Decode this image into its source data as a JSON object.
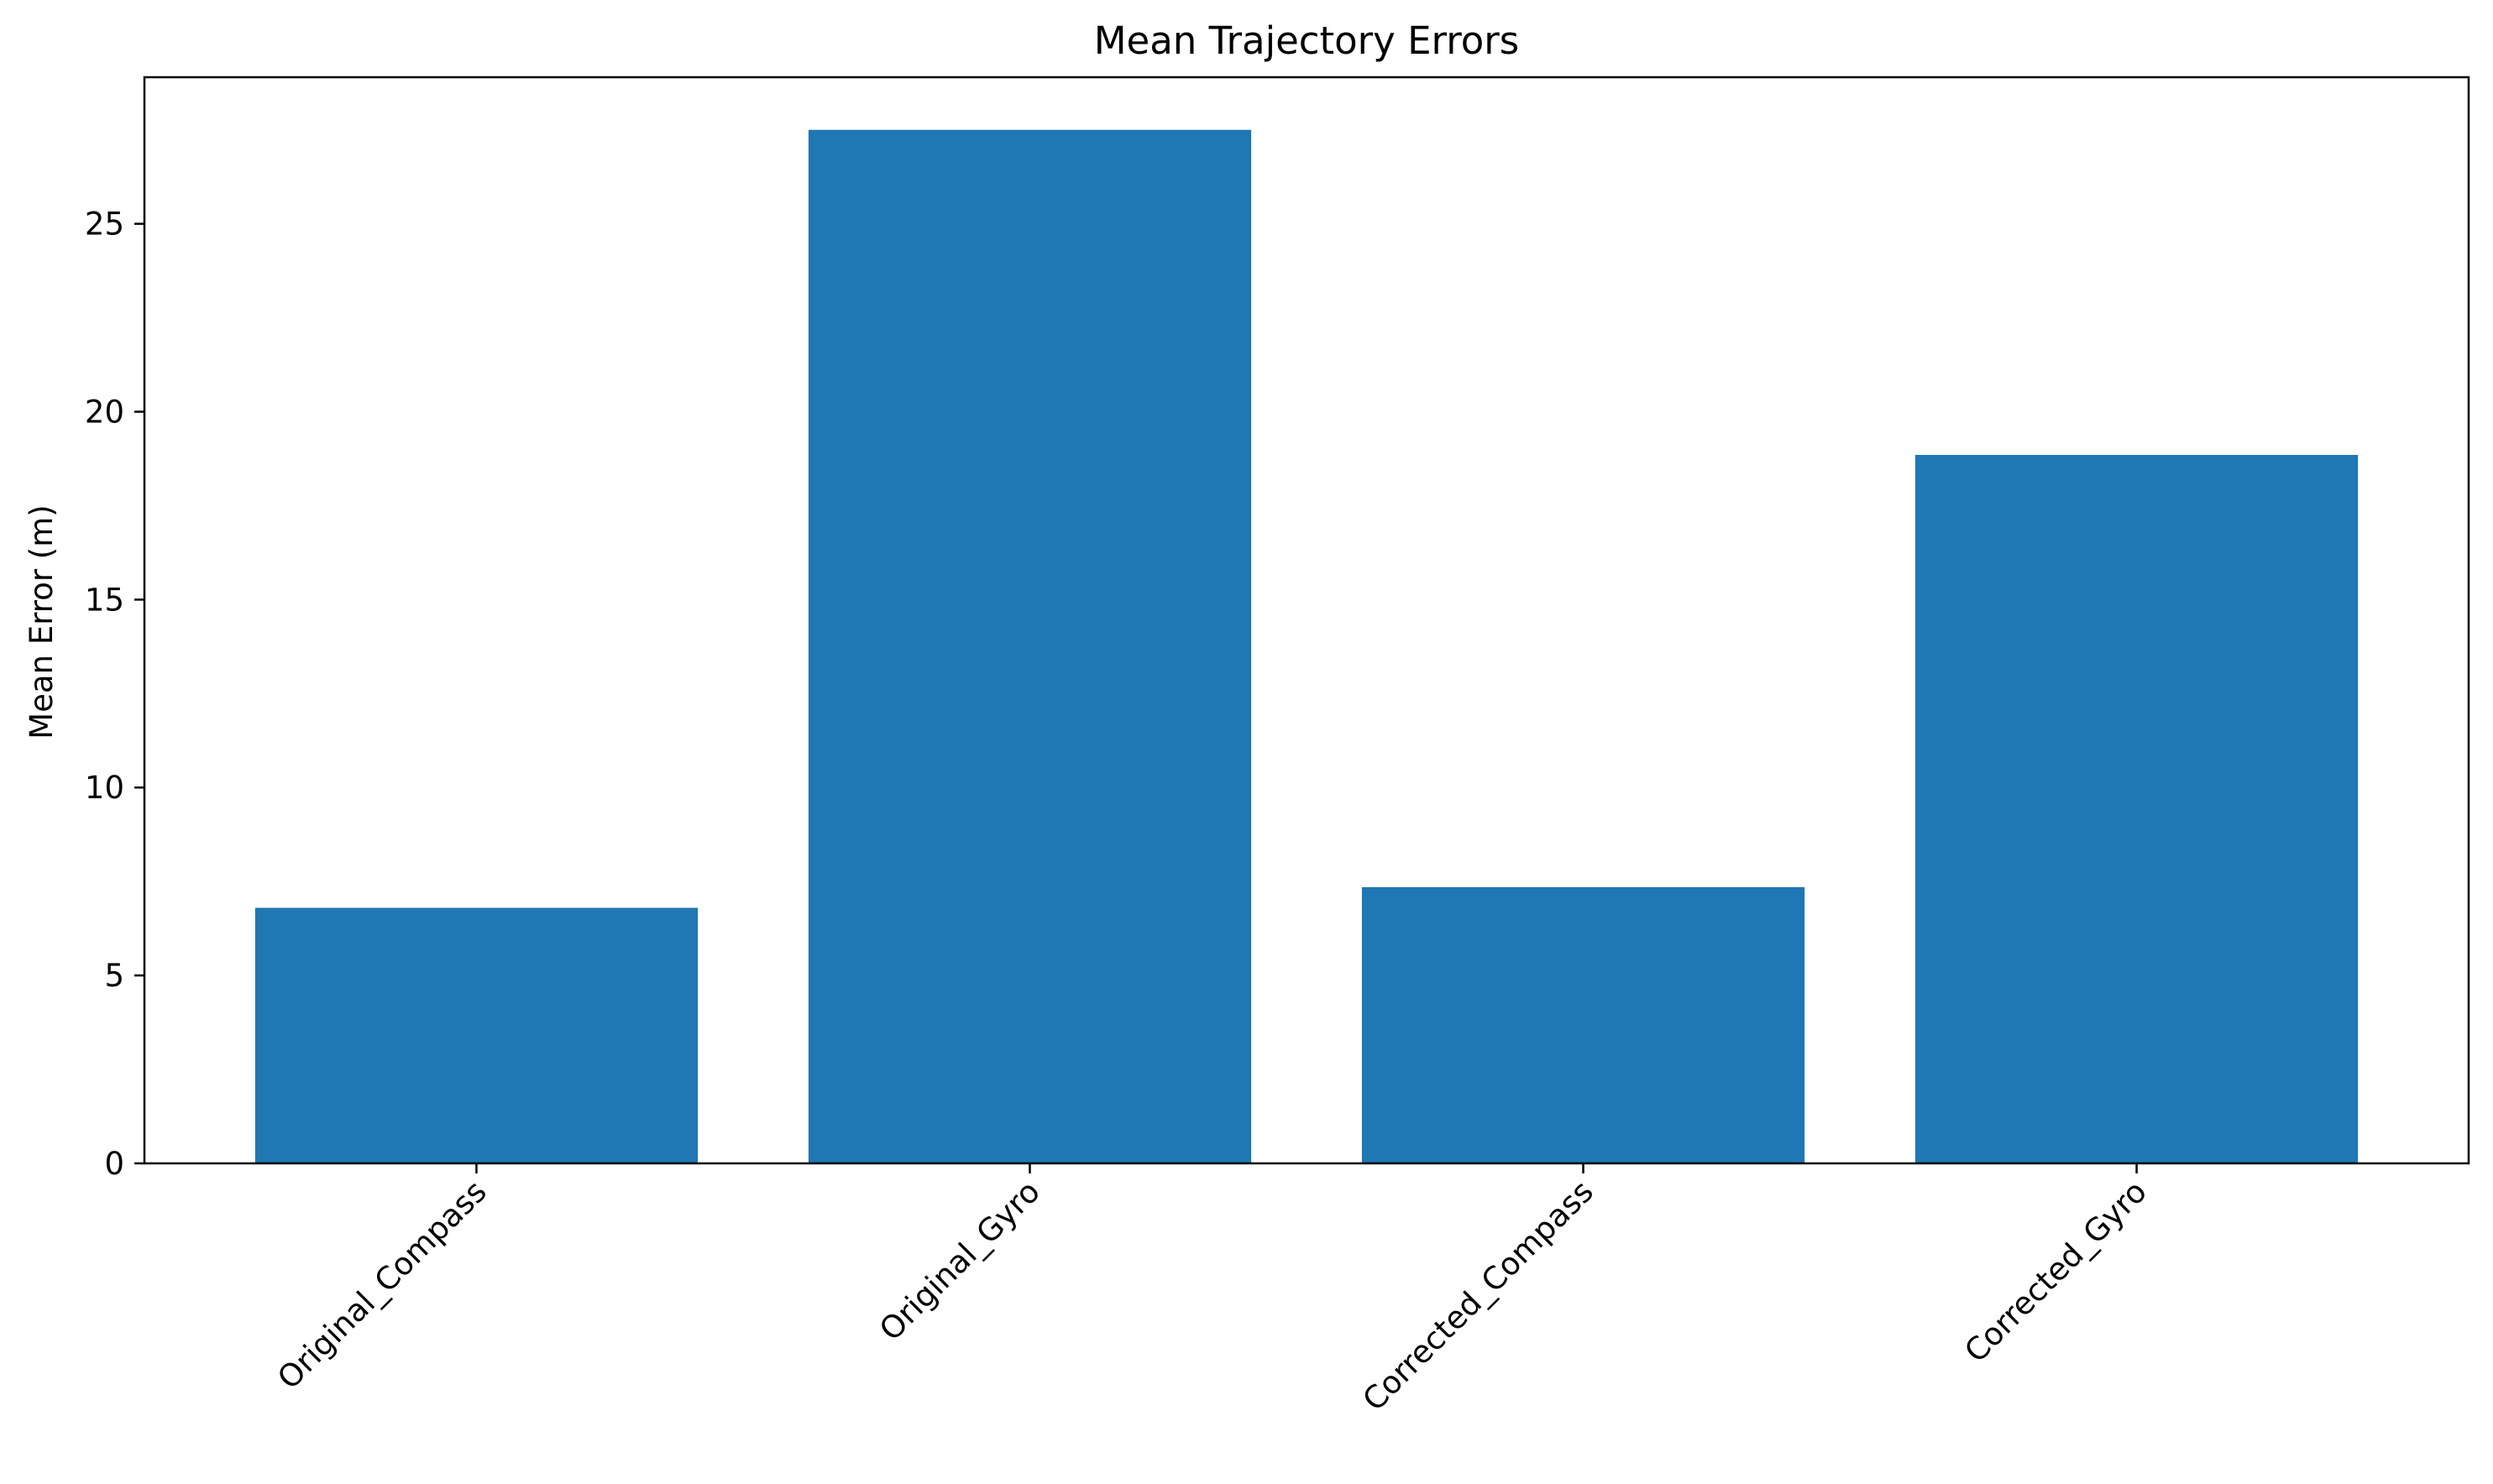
{
  "chart_data": {
    "type": "bar",
    "title": "Mean Trajectory Errors",
    "xlabel": "",
    "ylabel": "Mean Error (m)",
    "categories": [
      "Original_Compass",
      "Original_Gyro",
      "Corrected_Compass",
      "Corrected_Gyro"
    ],
    "values": [
      6.8,
      27.5,
      7.35,
      18.85
    ],
    "ylim": [
      0,
      28.9
    ],
    "yticks": [
      0,
      5,
      10,
      15,
      20,
      25
    ],
    "bar_color": "#1f77b4",
    "grid": false,
    "legend": "none"
  }
}
